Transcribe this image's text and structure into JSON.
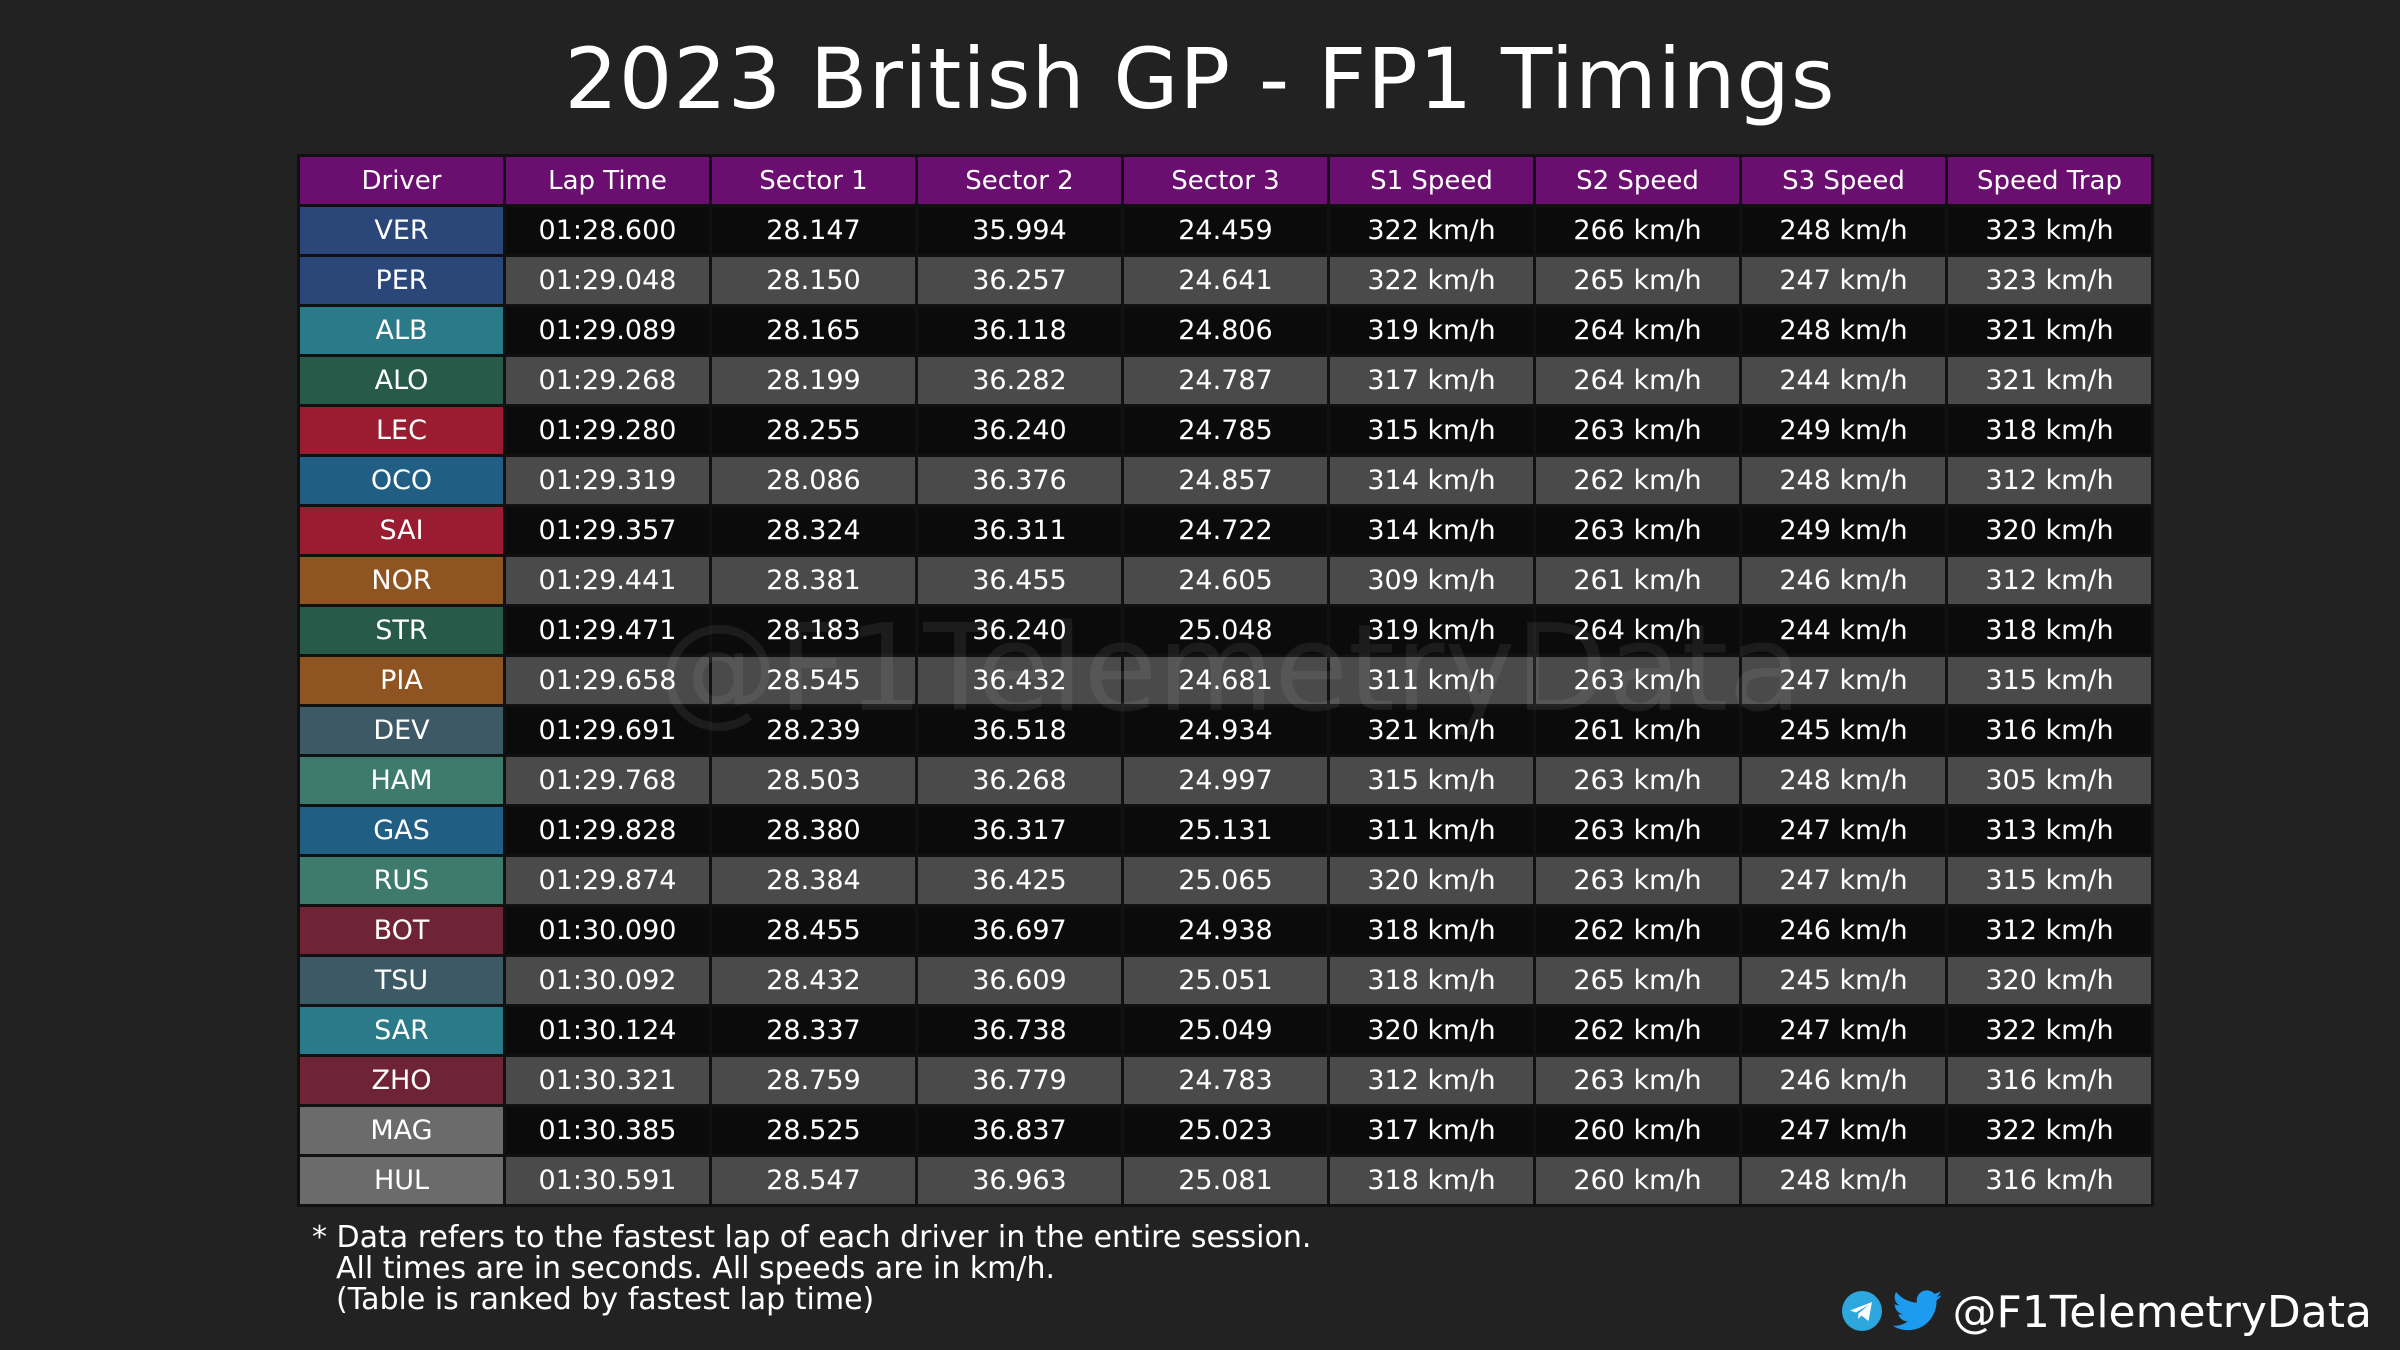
{
  "title": "2023 British GP - FP1 Timings",
  "watermark": "@F1TelemetryData",
  "table": {
    "headers": [
      "Driver",
      "Lap Time",
      "Sector 1",
      "Sector 2",
      "Sector 3",
      "S1 Speed",
      "S2 Speed",
      "S3 Speed",
      "Speed Trap"
    ],
    "rows": [
      {
        "driver": "VER",
        "color": "#2b4779",
        "lap": "01:28.600",
        "s1": "28.147",
        "s2": "35.994",
        "s3": "24.459",
        "sp1": "322 km/h",
        "sp2": "266 km/h",
        "sp3": "248 km/h",
        "trap": "323 km/h"
      },
      {
        "driver": "PER",
        "color": "#2b4779",
        "lap": "01:29.048",
        "s1": "28.150",
        "s2": "36.257",
        "s3": "24.641",
        "sp1": "322 km/h",
        "sp2": "265 km/h",
        "sp3": "247 km/h",
        "trap": "323 km/h"
      },
      {
        "driver": "ALB",
        "color": "#2a7a8a",
        "lap": "01:29.089",
        "s1": "28.165",
        "s2": "36.118",
        "s3": "24.806",
        "sp1": "319 km/h",
        "sp2": "264 km/h",
        "sp3": "248 km/h",
        "trap": "321 km/h"
      },
      {
        "driver": "ALO",
        "color": "#285a4a",
        "lap": "01:29.268",
        "s1": "28.199",
        "s2": "36.282",
        "s3": "24.787",
        "sp1": "317 km/h",
        "sp2": "264 km/h",
        "sp3": "244 km/h",
        "trap": "321 km/h"
      },
      {
        "driver": "LEC",
        "color": "#9a1c30",
        "lap": "01:29.280",
        "s1": "28.255",
        "s2": "36.240",
        "s3": "24.785",
        "sp1": "315 km/h",
        "sp2": "263 km/h",
        "sp3": "249 km/h",
        "trap": "318 km/h"
      },
      {
        "driver": "OCO",
        "color": "#215e84",
        "lap": "01:29.319",
        "s1": "28.086",
        "s2": "36.376",
        "s3": "24.857",
        "sp1": "314 km/h",
        "sp2": "262 km/h",
        "sp3": "248 km/h",
        "trap": "312 km/h"
      },
      {
        "driver": "SAI",
        "color": "#9a1c30",
        "lap": "01:29.357",
        "s1": "28.324",
        "s2": "36.311",
        "s3": "24.722",
        "sp1": "314 km/h",
        "sp2": "263 km/h",
        "sp3": "249 km/h",
        "trap": "320 km/h"
      },
      {
        "driver": "NOR",
        "color": "#8e5522",
        "lap": "01:29.441",
        "s1": "28.381",
        "s2": "36.455",
        "s3": "24.605",
        "sp1": "309 km/h",
        "sp2": "261 km/h",
        "sp3": "246 km/h",
        "trap": "312 km/h"
      },
      {
        "driver": "STR",
        "color": "#285a4a",
        "lap": "01:29.471",
        "s1": "28.183",
        "s2": "36.240",
        "s3": "25.048",
        "sp1": "319 km/h",
        "sp2": "264 km/h",
        "sp3": "244 km/h",
        "trap": "318 km/h"
      },
      {
        "driver": "PIA",
        "color": "#8e5522",
        "lap": "01:29.658",
        "s1": "28.545",
        "s2": "36.432",
        "s3": "24.681",
        "sp1": "311 km/h",
        "sp2": "263 km/h",
        "sp3": "247 km/h",
        "trap": "315 km/h"
      },
      {
        "driver": "DEV",
        "color": "#3d5966",
        "lap": "01:29.691",
        "s1": "28.239",
        "s2": "36.518",
        "s3": "24.934",
        "sp1": "321 km/h",
        "sp2": "261 km/h",
        "sp3": "245 km/h",
        "trap": "316 km/h"
      },
      {
        "driver": "HAM",
        "color": "#3e7a6e",
        "lap": "01:29.768",
        "s1": "28.503",
        "s2": "36.268",
        "s3": "24.997",
        "sp1": "315 km/h",
        "sp2": "263 km/h",
        "sp3": "248 km/h",
        "trap": "305 km/h"
      },
      {
        "driver": "GAS",
        "color": "#215e84",
        "lap": "01:29.828",
        "s1": "28.380",
        "s2": "36.317",
        "s3": "25.131",
        "sp1": "311 km/h",
        "sp2": "263 km/h",
        "sp3": "247 km/h",
        "trap": "313 km/h"
      },
      {
        "driver": "RUS",
        "color": "#3e7a6e",
        "lap": "01:29.874",
        "s1": "28.384",
        "s2": "36.425",
        "s3": "25.065",
        "sp1": "320 km/h",
        "sp2": "263 km/h",
        "sp3": "247 km/h",
        "trap": "315 km/h"
      },
      {
        "driver": "BOT",
        "color": "#6e2434",
        "lap": "01:30.090",
        "s1": "28.455",
        "s2": "36.697",
        "s3": "24.938",
        "sp1": "318 km/h",
        "sp2": "262 km/h",
        "sp3": "246 km/h",
        "trap": "312 km/h"
      },
      {
        "driver": "TSU",
        "color": "#3d5966",
        "lap": "01:30.092",
        "s1": "28.432",
        "s2": "36.609",
        "s3": "25.051",
        "sp1": "318 km/h",
        "sp2": "265 km/h",
        "sp3": "245 km/h",
        "trap": "320 km/h"
      },
      {
        "driver": "SAR",
        "color": "#2a7a8a",
        "lap": "01:30.124",
        "s1": "28.337",
        "s2": "36.738",
        "s3": "25.049",
        "sp1": "320 km/h",
        "sp2": "262 km/h",
        "sp3": "247 km/h",
        "trap": "322 km/h"
      },
      {
        "driver": "ZHO",
        "color": "#6e2434",
        "lap": "01:30.321",
        "s1": "28.759",
        "s2": "36.779",
        "s3": "24.783",
        "sp1": "312 km/h",
        "sp2": "263 km/h",
        "sp3": "246 km/h",
        "trap": "316 km/h"
      },
      {
        "driver": "MAG",
        "color": "#6b6b6b",
        "lap": "01:30.385",
        "s1": "28.525",
        "s2": "36.837",
        "s3": "25.023",
        "sp1": "317 km/h",
        "sp2": "260 km/h",
        "sp3": "247 km/h",
        "trap": "322 km/h"
      },
      {
        "driver": "HUL",
        "color": "#6b6b6b",
        "lap": "01:30.591",
        "s1": "28.547",
        "s2": "36.963",
        "s3": "25.081",
        "sp1": "318 km/h",
        "sp2": "260 km/h",
        "sp3": "248 km/h",
        "trap": "316 km/h"
      }
    ]
  },
  "footnote": {
    "line1": "* Data refers to the fastest lap of each driver in the entire session.",
    "line2": "All times are in seconds. All speeds are in km/h.",
    "line3": "(Table is ranked by fastest lap time)"
  },
  "social": {
    "handle": "@F1TelemetryData",
    "icons": [
      "telegram-icon",
      "twitter-icon"
    ],
    "telegram_color": "#2ea6de",
    "twitter_color": "#1d9bf0"
  }
}
